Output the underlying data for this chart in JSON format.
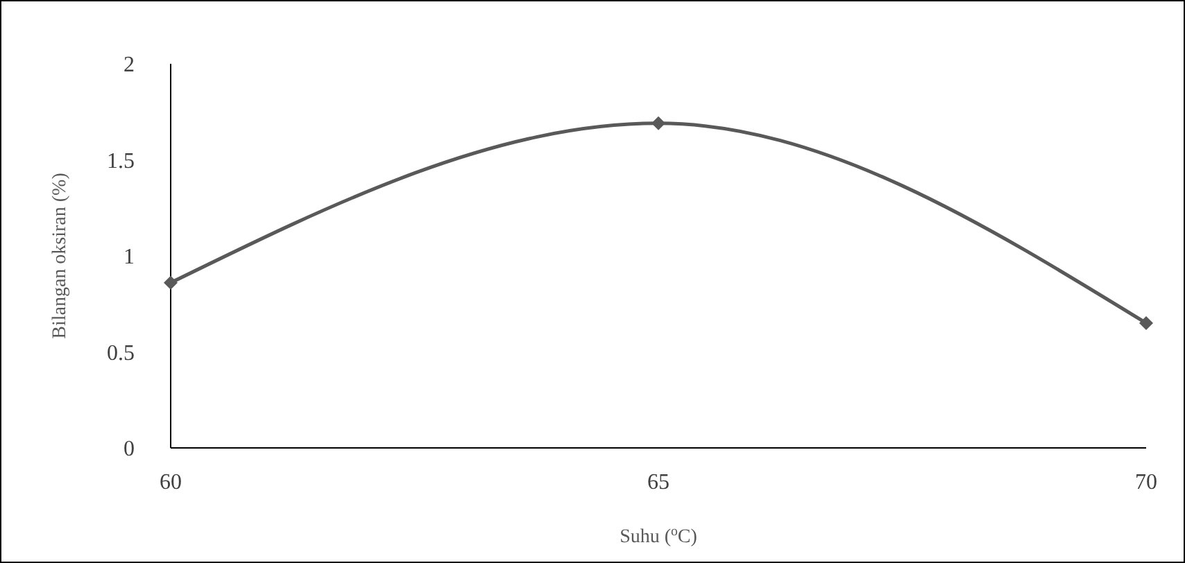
{
  "chart_data": {
    "type": "line",
    "xlabel": "Suhu ($^{o}$C)",
    "ylabel": "Bilangan oksiran (%)",
    "categories": [
      "60",
      "65",
      "70"
    ],
    "series": [
      {
        "color": "#595959",
        "values": [
          0.86,
          1.69,
          0.65
        ]
      }
    ],
    "ylim": [
      0,
      2
    ],
    "yticks": [
      0,
      0.5,
      1,
      1.5,
      2
    ],
    "marker": "diamond",
    "line_style": "solid",
    "grid": false
  }
}
